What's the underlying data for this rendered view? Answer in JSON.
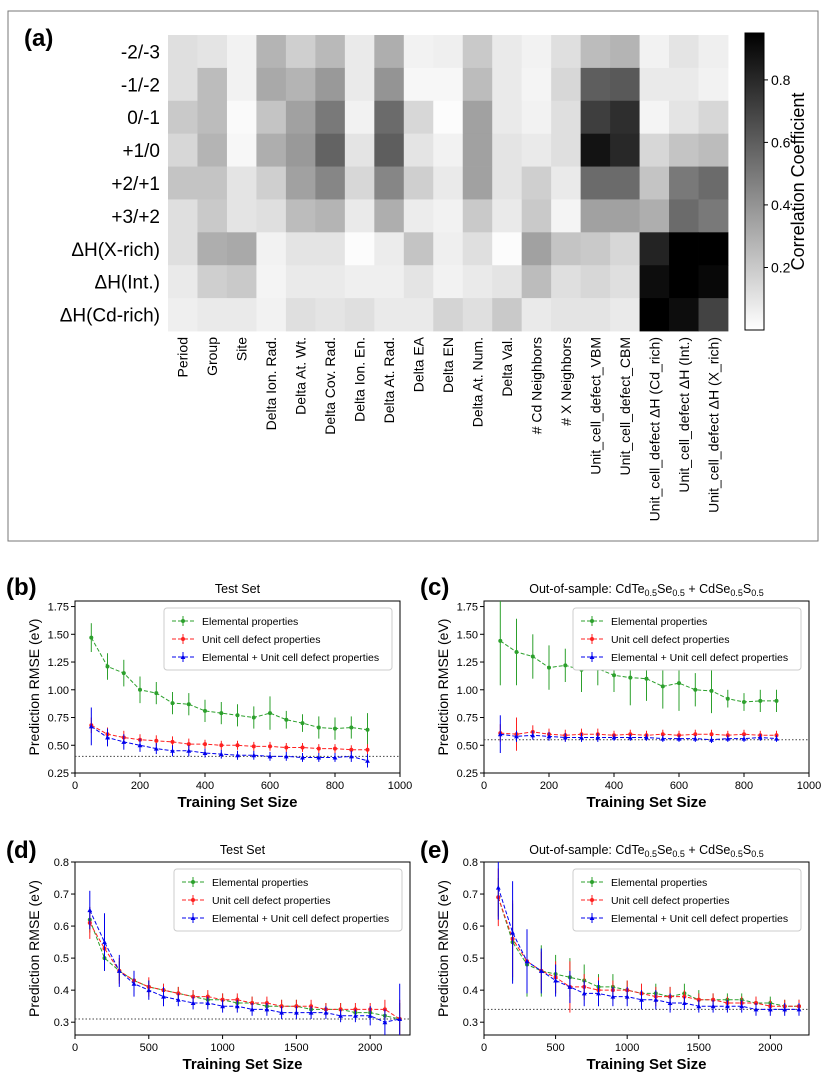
{
  "figure": {
    "panel_labels": [
      "(a)",
      "(b)",
      "(c)",
      "(d)",
      "(e)"
    ]
  },
  "chart_data": [
    {
      "panel": "(a)",
      "type": "heatmap",
      "title": "",
      "rows": [
        "-2/-3",
        "-1/-2",
        "0/-1",
        "+1/0",
        "+2/+1",
        "+3/+2",
        "ΔH(X-rich)",
        "ΔH(Int.)",
        "ΔH(Cd-rich)"
      ],
      "columns": [
        "Period",
        "Group",
        "Site",
        "Delta Ion. Rad.",
        "Delta At. Wt.",
        "Delta Cov. Rad.",
        "Delta Ion. En.",
        "Delta At. Rad.",
        "Delta EA",
        "Delta EN",
        "Delta At. Num.",
        "Delta Val.",
        "# Cd Neighbors",
        "# X Neighbors",
        "Unit_cell_defect_VBM",
        "Unit_cell_defect_CBM",
        "Unit_cell_defect ΔH (Cd_rich)",
        "Unit_cell_defect ΔH (Int.)",
        "Unit_cell_defect ΔH (X_rich)"
      ],
      "values": [
        [
          0.12,
          0.1,
          0.05,
          0.28,
          0.18,
          0.26,
          0.08,
          0.3,
          0.05,
          0.06,
          0.2,
          0.08,
          0.05,
          0.12,
          0.25,
          0.28,
          0.05,
          0.1,
          0.06
        ],
        [
          0.12,
          0.25,
          0.05,
          0.32,
          0.28,
          0.38,
          0.08,
          0.4,
          0.03,
          0.03,
          0.25,
          0.08,
          0.04,
          0.15,
          0.6,
          0.62,
          0.08,
          0.08,
          0.05
        ],
        [
          0.2,
          0.25,
          0.02,
          0.22,
          0.35,
          0.5,
          0.05,
          0.55,
          0.15,
          0.01,
          0.35,
          0.08,
          0.05,
          0.12,
          0.72,
          0.78,
          0.04,
          0.1,
          0.15
        ],
        [
          0.15,
          0.28,
          0.03,
          0.3,
          0.38,
          0.58,
          0.1,
          0.6,
          0.1,
          0.05,
          0.35,
          0.1,
          0.08,
          0.12,
          0.88,
          0.8,
          0.15,
          0.22,
          0.25
        ],
        [
          0.22,
          0.22,
          0.1,
          0.18,
          0.35,
          0.45,
          0.15,
          0.45,
          0.18,
          0.08,
          0.35,
          0.1,
          0.18,
          0.08,
          0.55,
          0.55,
          0.22,
          0.5,
          0.55
        ],
        [
          0.12,
          0.2,
          0.1,
          0.12,
          0.25,
          0.28,
          0.08,
          0.3,
          0.07,
          0.05,
          0.2,
          0.08,
          0.2,
          0.04,
          0.35,
          0.35,
          0.3,
          0.55,
          0.5
        ],
        [
          0.12,
          0.3,
          0.32,
          0.05,
          0.1,
          0.1,
          0.01,
          0.07,
          0.22,
          0.06,
          0.12,
          0.01,
          0.35,
          0.22,
          0.2,
          0.15,
          0.82,
          0.95,
          0.98
        ],
        [
          0.08,
          0.18,
          0.2,
          0.04,
          0.08,
          0.08,
          0.06,
          0.06,
          0.1,
          0.05,
          0.08,
          0.1,
          0.25,
          0.12,
          0.15,
          0.12,
          0.9,
          0.97,
          0.92
        ],
        [
          0.06,
          0.08,
          0.08,
          0.05,
          0.12,
          0.1,
          0.12,
          0.08,
          0.08,
          0.16,
          0.12,
          0.2,
          0.08,
          0.1,
          0.1,
          0.08,
          0.95,
          0.9,
          0.7
        ]
      ],
      "colorbar": {
        "label": "Correlation Coefficient",
        "range": [
          0,
          0.95
        ],
        "ticks": [
          0.2,
          0.4,
          0.6,
          0.8
        ],
        "tick_labels": [
          "0.2",
          "0.4",
          "0.6",
          "0.8"
        ]
      }
    },
    {
      "panel": "(b)",
      "type": "line",
      "title": "Test Set",
      "xlabel": "Training Set Size",
      "ylabel": "Prediction RMSE (eV)",
      "xlim": [
        0,
        1000
      ],
      "ylim": [
        0.25,
        1.8
      ],
      "xticks": [
        0,
        200,
        400,
        600,
        800,
        1000
      ],
      "xtick_labels": [
        "0",
        "200",
        "400",
        "600",
        "800",
        "1000"
      ],
      "yticks": [
        0.25,
        0.5,
        0.75,
        1.0,
        1.25,
        1.5,
        1.75
      ],
      "ytick_labels": [
        "0.25",
        "0.50",
        "0.75",
        "1.00",
        "1.25",
        "1.50",
        "1.75"
      ],
      "reference_line": 0.4,
      "legend_position": "top-right",
      "x": [
        50,
        100,
        150,
        200,
        250,
        300,
        350,
        400,
        450,
        500,
        550,
        600,
        650,
        700,
        750,
        800,
        850,
        900
      ],
      "series": [
        {
          "name": "Elemental properties",
          "color": "#2ca02c",
          "values": [
            1.47,
            1.21,
            1.15,
            1.0,
            0.97,
            0.88,
            0.87,
            0.81,
            0.79,
            0.77,
            0.75,
            0.79,
            0.73,
            0.7,
            0.66,
            0.65,
            0.66,
            0.64
          ],
          "errors": [
            0.13,
            0.12,
            0.12,
            0.12,
            0.1,
            0.1,
            0.1,
            0.1,
            0.1,
            0.1,
            0.1,
            0.15,
            0.08,
            0.08,
            0.1,
            0.1,
            0.1,
            0.15
          ]
        },
        {
          "name": "Unit cell defect properties",
          "color": "#ff2020",
          "values": [
            0.68,
            0.6,
            0.57,
            0.55,
            0.54,
            0.53,
            0.51,
            0.51,
            0.5,
            0.5,
            0.49,
            0.49,
            0.48,
            0.48,
            0.47,
            0.47,
            0.46,
            0.46
          ],
          "errors": [
            0.07,
            0.06,
            0.06,
            0.05,
            0.05,
            0.05,
            0.05,
            0.04,
            0.04,
            0.04,
            0.04,
            0.04,
            0.04,
            0.04,
            0.04,
            0.04,
            0.04,
            0.05
          ]
        },
        {
          "name": "Elemental + Unit cell defect properties",
          "color": "#0000ee",
          "values": [
            0.67,
            0.57,
            0.53,
            0.5,
            0.47,
            0.45,
            0.45,
            0.43,
            0.42,
            0.41,
            0.41,
            0.4,
            0.4,
            0.39,
            0.39,
            0.39,
            0.4,
            0.36
          ],
          "errors": [
            0.17,
            0.08,
            0.07,
            0.06,
            0.05,
            0.05,
            0.05,
            0.04,
            0.04,
            0.04,
            0.04,
            0.04,
            0.04,
            0.04,
            0.04,
            0.04,
            0.05,
            0.06
          ]
        }
      ]
    },
    {
      "panel": "(c)",
      "type": "line",
      "title": "Out-of-sample: CdTe",
      "title_parts": [
        "Out-of-sample: CdTe",
        "0.5",
        "Se",
        "0.5",
        " + CdSe",
        "0.5",
        "S",
        "0.5"
      ],
      "xlabel": "Training Set Size",
      "ylabel": "Prediction RMSE (eV)",
      "xlim": [
        0,
        1000
      ],
      "ylim": [
        0.25,
        1.8
      ],
      "xticks": [
        0,
        200,
        400,
        600,
        800,
        1000
      ],
      "xtick_labels": [
        "0",
        "200",
        "400",
        "600",
        "800",
        "1000"
      ],
      "yticks": [
        0.25,
        0.5,
        0.75,
        1.0,
        1.25,
        1.5,
        1.75
      ],
      "ytick_labels": [
        "0.25",
        "0.50",
        "0.75",
        "1.00",
        "1.25",
        "1.50",
        "1.75"
      ],
      "reference_line": 0.55,
      "legend_position": "top-right",
      "x": [
        50,
        100,
        150,
        200,
        250,
        300,
        350,
        400,
        450,
        500,
        550,
        600,
        650,
        700,
        750,
        800,
        850,
        900
      ],
      "series": [
        {
          "name": "Elemental properties",
          "color": "#2ca02c",
          "values": [
            1.44,
            1.34,
            1.3,
            1.2,
            1.22,
            1.18,
            1.19,
            1.13,
            1.11,
            1.1,
            1.03,
            1.06,
            1.0,
            0.99,
            0.92,
            0.89,
            0.9,
            0.9
          ],
          "errors": [
            0.4,
            0.3,
            0.2,
            0.2,
            0.15,
            0.2,
            0.15,
            0.15,
            0.25,
            0.2,
            0.2,
            0.25,
            0.15,
            0.2,
            0.08,
            0.08,
            0.1,
            0.1
          ]
        },
        {
          "name": "Unit cell defect properties",
          "color": "#ff2020",
          "values": [
            0.61,
            0.6,
            0.62,
            0.6,
            0.59,
            0.6,
            0.6,
            0.59,
            0.6,
            0.59,
            0.6,
            0.59,
            0.6,
            0.6,
            0.59,
            0.6,
            0.59,
            0.59
          ],
          "errors": [
            0.08,
            0.15,
            0.06,
            0.05,
            0.05,
            0.05,
            0.05,
            0.04,
            0.04,
            0.04,
            0.04,
            0.04,
            0.04,
            0.04,
            0.04,
            0.04,
            0.04,
            0.04
          ]
        },
        {
          "name": "Elemental + Unit cell defect properties",
          "color": "#0000ee",
          "values": [
            0.6,
            0.58,
            0.59,
            0.58,
            0.57,
            0.57,
            0.57,
            0.57,
            0.57,
            0.57,
            0.56,
            0.56,
            0.56,
            0.55,
            0.56,
            0.56,
            0.57,
            0.56
          ],
          "errors": [
            0.17,
            0.05,
            0.04,
            0.04,
            0.04,
            0.04,
            0.04,
            0.03,
            0.03,
            0.03,
            0.03,
            0.03,
            0.03,
            0.03,
            0.03,
            0.03,
            0.03,
            0.03
          ]
        }
      ]
    },
    {
      "panel": "(d)",
      "type": "line",
      "title": "Test Set",
      "xlabel": "Training Set Size",
      "ylabel": "Prediction RMSE (eV)",
      "xlim": [
        0,
        2270
      ],
      "ylim": [
        0.26,
        0.8
      ],
      "xticks": [
        0,
        500,
        1000,
        1500,
        2000
      ],
      "xtick_labels": [
        "0",
        "500",
        "1000",
        "1500",
        "2000"
      ],
      "yticks": [
        0.3,
        0.4,
        0.5,
        0.6,
        0.7,
        0.8
      ],
      "ytick_labels": [
        "0.3",
        "0.4",
        "0.5",
        "0.6",
        "0.7",
        "0.8"
      ],
      "reference_line": 0.31,
      "legend_position": "top-right",
      "x": [
        100,
        200,
        300,
        400,
        500,
        600,
        700,
        800,
        900,
        1000,
        1100,
        1200,
        1300,
        1400,
        1500,
        1600,
        1700,
        1800,
        1900,
        2000,
        2100,
        2200
      ],
      "series": [
        {
          "name": "Elemental properties",
          "color": "#2ca02c",
          "values": [
            0.62,
            0.5,
            0.46,
            0.43,
            0.41,
            0.4,
            0.39,
            0.38,
            0.37,
            0.37,
            0.36,
            0.36,
            0.35,
            0.35,
            0.35,
            0.34,
            0.34,
            0.34,
            0.33,
            0.33,
            0.32,
            0.31
          ],
          "errors": [
            0.04,
            0.04,
            0.03,
            0.03,
            0.02,
            0.02,
            0.02,
            0.02,
            0.02,
            0.02,
            0.02,
            0.02,
            0.02,
            0.02,
            0.02,
            0.02,
            0.02,
            0.02,
            0.02,
            0.02,
            0.03,
            0.05
          ]
        },
        {
          "name": "Unit cell defect properties",
          "color": "#ff2020",
          "values": [
            0.61,
            0.53,
            0.46,
            0.43,
            0.41,
            0.4,
            0.39,
            0.38,
            0.38,
            0.37,
            0.37,
            0.36,
            0.36,
            0.35,
            0.35,
            0.35,
            0.34,
            0.34,
            0.34,
            0.34,
            0.34,
            0.31
          ],
          "errors": [
            0.05,
            0.05,
            0.04,
            0.03,
            0.03,
            0.02,
            0.02,
            0.02,
            0.02,
            0.02,
            0.02,
            0.02,
            0.02,
            0.02,
            0.02,
            0.02,
            0.02,
            0.02,
            0.02,
            0.02,
            0.03,
            0.06
          ]
        },
        {
          "name": "Elemental + Unit cell defect properties",
          "color": "#0000ee",
          "values": [
            0.65,
            0.55,
            0.46,
            0.42,
            0.4,
            0.38,
            0.37,
            0.36,
            0.36,
            0.35,
            0.35,
            0.34,
            0.34,
            0.33,
            0.33,
            0.33,
            0.33,
            0.32,
            0.32,
            0.32,
            0.3,
            0.31
          ],
          "errors": [
            0.06,
            0.09,
            0.05,
            0.04,
            0.03,
            0.03,
            0.02,
            0.02,
            0.02,
            0.02,
            0.02,
            0.02,
            0.02,
            0.02,
            0.02,
            0.02,
            0.02,
            0.02,
            0.02,
            0.03,
            0.04,
            0.11
          ]
        }
      ]
    },
    {
      "panel": "(e)",
      "type": "line",
      "title": "Out-of-sample: CdTe",
      "title_parts": [
        "Out-of-sample: CdTe",
        "0.5",
        "Se",
        "0.5",
        " + CdSe",
        "0.5",
        "S",
        "0.5"
      ],
      "xlabel": "Training Set Size",
      "ylabel": "Prediction RMSE (eV)",
      "xlim": [
        0,
        2270
      ],
      "ylim": [
        0.26,
        0.8
      ],
      "xticks": [
        0,
        500,
        1000,
        1500,
        2000
      ],
      "xtick_labels": [
        "0",
        "500",
        "1000",
        "1500",
        "2000"
      ],
      "yticks": [
        0.3,
        0.4,
        0.5,
        0.6,
        0.7,
        0.8
      ],
      "ytick_labels": [
        "0.3",
        "0.4",
        "0.5",
        "0.6",
        "0.7",
        "0.8"
      ],
      "reference_line": 0.34,
      "legend_position": "top-right",
      "x": [
        100,
        200,
        300,
        400,
        500,
        600,
        700,
        800,
        900,
        1000,
        1100,
        1200,
        1300,
        1400,
        1500,
        1600,
        1700,
        1800,
        1900,
        2000,
        2100,
        2200
      ],
      "series": [
        {
          "name": "Elemental properties",
          "color": "#2ca02c",
          "values": [
            0.69,
            0.55,
            0.48,
            0.46,
            0.45,
            0.44,
            0.43,
            0.41,
            0.41,
            0.4,
            0.39,
            0.39,
            0.38,
            0.39,
            0.37,
            0.37,
            0.37,
            0.37,
            0.36,
            0.36,
            0.35,
            0.35
          ],
          "errors": [
            0.06,
            0.12,
            0.1,
            0.08,
            0.06,
            0.06,
            0.05,
            0.04,
            0.04,
            0.03,
            0.03,
            0.03,
            0.03,
            0.03,
            0.03,
            0.02,
            0.02,
            0.02,
            0.02,
            0.02,
            0.02,
            0.02
          ]
        },
        {
          "name": "Unit cell defect properties",
          "color": "#ff2020",
          "values": [
            0.69,
            0.56,
            0.49,
            0.46,
            0.44,
            0.41,
            0.41,
            0.4,
            0.4,
            0.4,
            0.39,
            0.38,
            0.38,
            0.38,
            0.37,
            0.37,
            0.36,
            0.36,
            0.36,
            0.35,
            0.35,
            0.35
          ],
          "errors": [
            0.09,
            0.12,
            0.08,
            0.06,
            0.05,
            0.08,
            0.04,
            0.04,
            0.03,
            0.03,
            0.03,
            0.03,
            0.03,
            0.02,
            0.02,
            0.02,
            0.02,
            0.02,
            0.02,
            0.02,
            0.02,
            0.02
          ]
        },
        {
          "name": "Elemental + Unit cell defect properties",
          "color": "#0000ee",
          "values": [
            0.72,
            0.58,
            0.49,
            0.46,
            0.43,
            0.41,
            0.39,
            0.39,
            0.38,
            0.38,
            0.37,
            0.37,
            0.36,
            0.36,
            0.35,
            0.35,
            0.35,
            0.35,
            0.34,
            0.34,
            0.34,
            0.34
          ],
          "errors": [
            0.1,
            0.16,
            0.1,
            0.07,
            0.05,
            0.05,
            0.04,
            0.04,
            0.03,
            0.03,
            0.03,
            0.03,
            0.03,
            0.02,
            0.02,
            0.02,
            0.02,
            0.02,
            0.02,
            0.02,
            0.02,
            0.02
          ]
        }
      ]
    }
  ]
}
